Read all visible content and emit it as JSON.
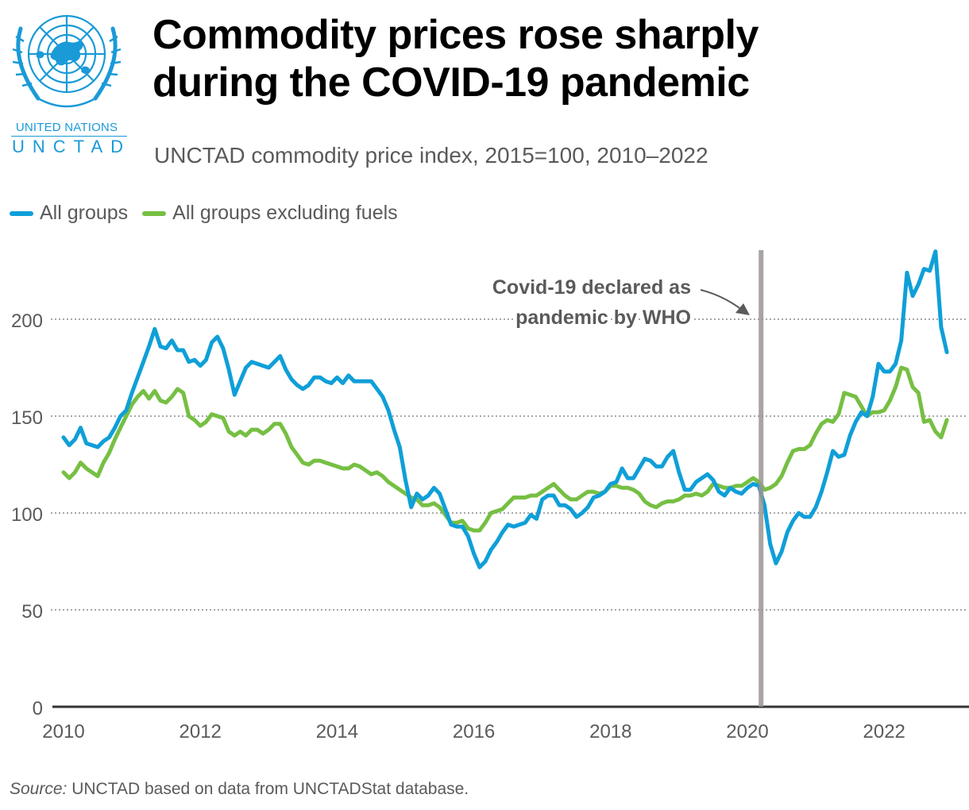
{
  "header": {
    "logo": {
      "line1": "UNITED NATIONS",
      "line2": "UNCTAD",
      "icon": "un-emblem-icon",
      "color": "#1a9ad7"
    },
    "title_line1": "Commodity prices rose sharply",
    "title_line2": "during the COVID-19 pandemic",
    "subtitle": "UNCTAD commodity price index, 2015=100, 2010–2022"
  },
  "legend": [
    {
      "label": "All groups",
      "color": "#0f9fd8"
    },
    {
      "label": "All groups excluding fuels",
      "color": "#76bf43"
    }
  ],
  "footer": {
    "source_label": "Source:",
    "source_text": " UNCTAD based on data from UNCTADStat database."
  },
  "chart_data": {
    "type": "line",
    "title": "Commodity prices rose sharply during the COVID-19 pandemic",
    "subtitle": "UNCTAD commodity price index, 2015=100, 2010–2022",
    "xlabel": "",
    "ylabel": "",
    "x_start": "2010-01",
    "x_frequency": "monthly",
    "xlim": [
      2010,
      2023
    ],
    "ylim": [
      0,
      235
    ],
    "x_ticks": [
      "2010",
      "2012",
      "2014",
      "2016",
      "2018",
      "2020",
      "2022"
    ],
    "x_tick_values": [
      2010,
      2012,
      2014,
      2016,
      2018,
      2020,
      2022
    ],
    "y_ticks": [
      0,
      50,
      100,
      150,
      200
    ],
    "grid": "horizontal-dotted",
    "legend_position": "top-left",
    "series": [
      {
        "name": "All groups",
        "color": "#0f9fd8",
        "values": [
          139,
          135,
          138,
          144,
          136,
          135,
          134,
          137,
          139,
          144,
          150,
          153,
          162,
          170,
          178,
          186,
          195,
          186,
          185,
          189,
          184,
          184,
          178,
          179,
          176,
          179,
          188,
          191,
          185,
          174,
          161,
          168,
          175,
          178,
          177,
          176,
          175,
          178,
          181,
          174,
          169,
          166,
          164,
          166,
          170,
          170,
          168,
          167,
          170,
          167,
          171,
          168,
          168,
          168,
          168,
          164,
          160,
          153,
          143,
          134,
          117,
          103,
          110,
          107,
          109,
          113,
          110,
          102,
          94,
          93,
          93,
          88,
          79,
          72,
          75,
          81,
          85,
          90,
          94,
          93,
          94,
          95,
          99,
          97,
          107,
          109,
          109,
          104,
          104,
          102,
          98,
          100,
          103,
          108,
          109,
          111,
          115,
          116,
          123,
          118,
          118,
          123,
          128,
          127,
          124,
          124,
          129,
          132,
          121,
          112,
          112,
          116,
          118,
          120,
          117,
          111,
          109,
          113,
          111,
          110,
          113,
          115,
          114,
          104,
          84,
          74,
          80,
          90,
          96,
          100,
          98,
          98,
          103,
          111,
          121,
          132,
          129,
          130,
          140,
          147,
          152,
          150,
          160,
          177,
          173,
          173,
          177,
          189,
          224,
          212,
          218,
          226,
          225,
          235,
          196,
          183
        ]
      },
      {
        "name": "All groups excluding fuels",
        "color": "#76bf43",
        "values": [
          121,
          118,
          121,
          126,
          123,
          121,
          119,
          126,
          131,
          138,
          144,
          150,
          156,
          160,
          163,
          159,
          163,
          158,
          157,
          160,
          164,
          162,
          150,
          148,
          145,
          147,
          151,
          150,
          149,
          142,
          140,
          142,
          140,
          143,
          143,
          141,
          143,
          146,
          146,
          141,
          134,
          130,
          126,
          125,
          127,
          127,
          126,
          125,
          124,
          123,
          123,
          125,
          124,
          122,
          120,
          121,
          119,
          116,
          114,
          112,
          110,
          108,
          107,
          104,
          104,
          105,
          103,
          99,
          95,
          95,
          96,
          92,
          91,
          91,
          95,
          100,
          101,
          102,
          105,
          108,
          108,
          108,
          109,
          109,
          111,
          113,
          115,
          112,
          109,
          107,
          107,
          109,
          111,
          111,
          110,
          111,
          114,
          114,
          113,
          113,
          112,
          110,
          106,
          104,
          103,
          105,
          106,
          106,
          107,
          109,
          109,
          110,
          109,
          111,
          115,
          114,
          113,
          113,
          114,
          114,
          116,
          118,
          116,
          112,
          113,
          115,
          119,
          126,
          132,
          133,
          133,
          135,
          141,
          146,
          148,
          147,
          151,
          162,
          161,
          160,
          155,
          150,
          152,
          152,
          153,
          158,
          165,
          175,
          174,
          165,
          162,
          147,
          148,
          142,
          139,
          148
        ]
      }
    ],
    "annotations": [
      {
        "type": "vertical-line",
        "x": 2020.2,
        "color": "#9a9591",
        "text_line1": "Covid-19 declared as",
        "text_line2": "pandemic by WHO"
      }
    ]
  }
}
